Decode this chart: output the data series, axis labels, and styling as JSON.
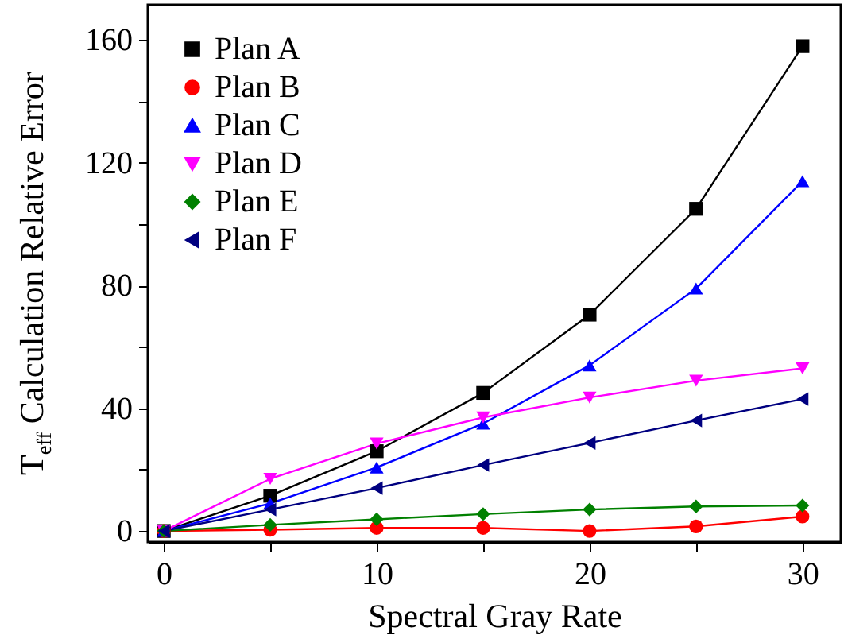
{
  "chart_data": {
    "type": "line",
    "xlabel": "Spectral Gray Rate",
    "ylabel": "T$_{eff}$ Calculation Relative Error",
    "x": [
      0,
      5,
      10,
      15,
      20,
      25,
      30
    ],
    "xlim": [
      -0.75,
      31.8
    ],
    "xticks": [
      0,
      {
        "value": 5,
        "label": null
      },
      10,
      {
        "value": 15,
        "label": null
      },
      20,
      {
        "value": 25,
        "label": null
      },
      30
    ],
    "ylim": [
      -3.6,
      171.5
    ],
    "yticks": [
      0,
      {
        "value": 20,
        "label": null
      },
      40,
      {
        "value": 60,
        "label": null
      },
      80,
      {
        "value": 100,
        "label": null
      },
      120,
      {
        "value": 140,
        "label": null
      },
      160
    ],
    "legend": "top left",
    "grid": false,
    "line_style": "solid",
    "series": [
      {
        "name": "Plan A",
        "color": "#000000",
        "marker": "square",
        "values": [
          0,
          11.5,
          26,
          45,
          70.5,
          105,
          158
        ]
      },
      {
        "name": "Plan B",
        "color": "#ff0000",
        "marker": "circle",
        "values": [
          0,
          0.4,
          1,
          1,
          0,
          1.5,
          4.7
        ]
      },
      {
        "name": "Plan C",
        "color": "#0000ff",
        "marker": "triangle",
        "values": [
          0,
          9,
          20.7,
          35,
          54,
          79,
          114
        ]
      },
      {
        "name": "Plan D",
        "color": "#ff00ff",
        "marker": "triangle-down",
        "values": [
          0,
          17,
          28.5,
          37,
          43.5,
          49,
          53
        ]
      },
      {
        "name": "Plan E",
        "color": "#008000",
        "marker": "diamond",
        "values": [
          0,
          2,
          3.8,
          5.5,
          7,
          8,
          8.3
        ]
      },
      {
        "name": "Plan F",
        "color": "#000080",
        "marker": "triangle-left",
        "values": [
          0,
          7,
          14,
          21.5,
          28.7,
          36,
          43
        ]
      }
    ]
  }
}
